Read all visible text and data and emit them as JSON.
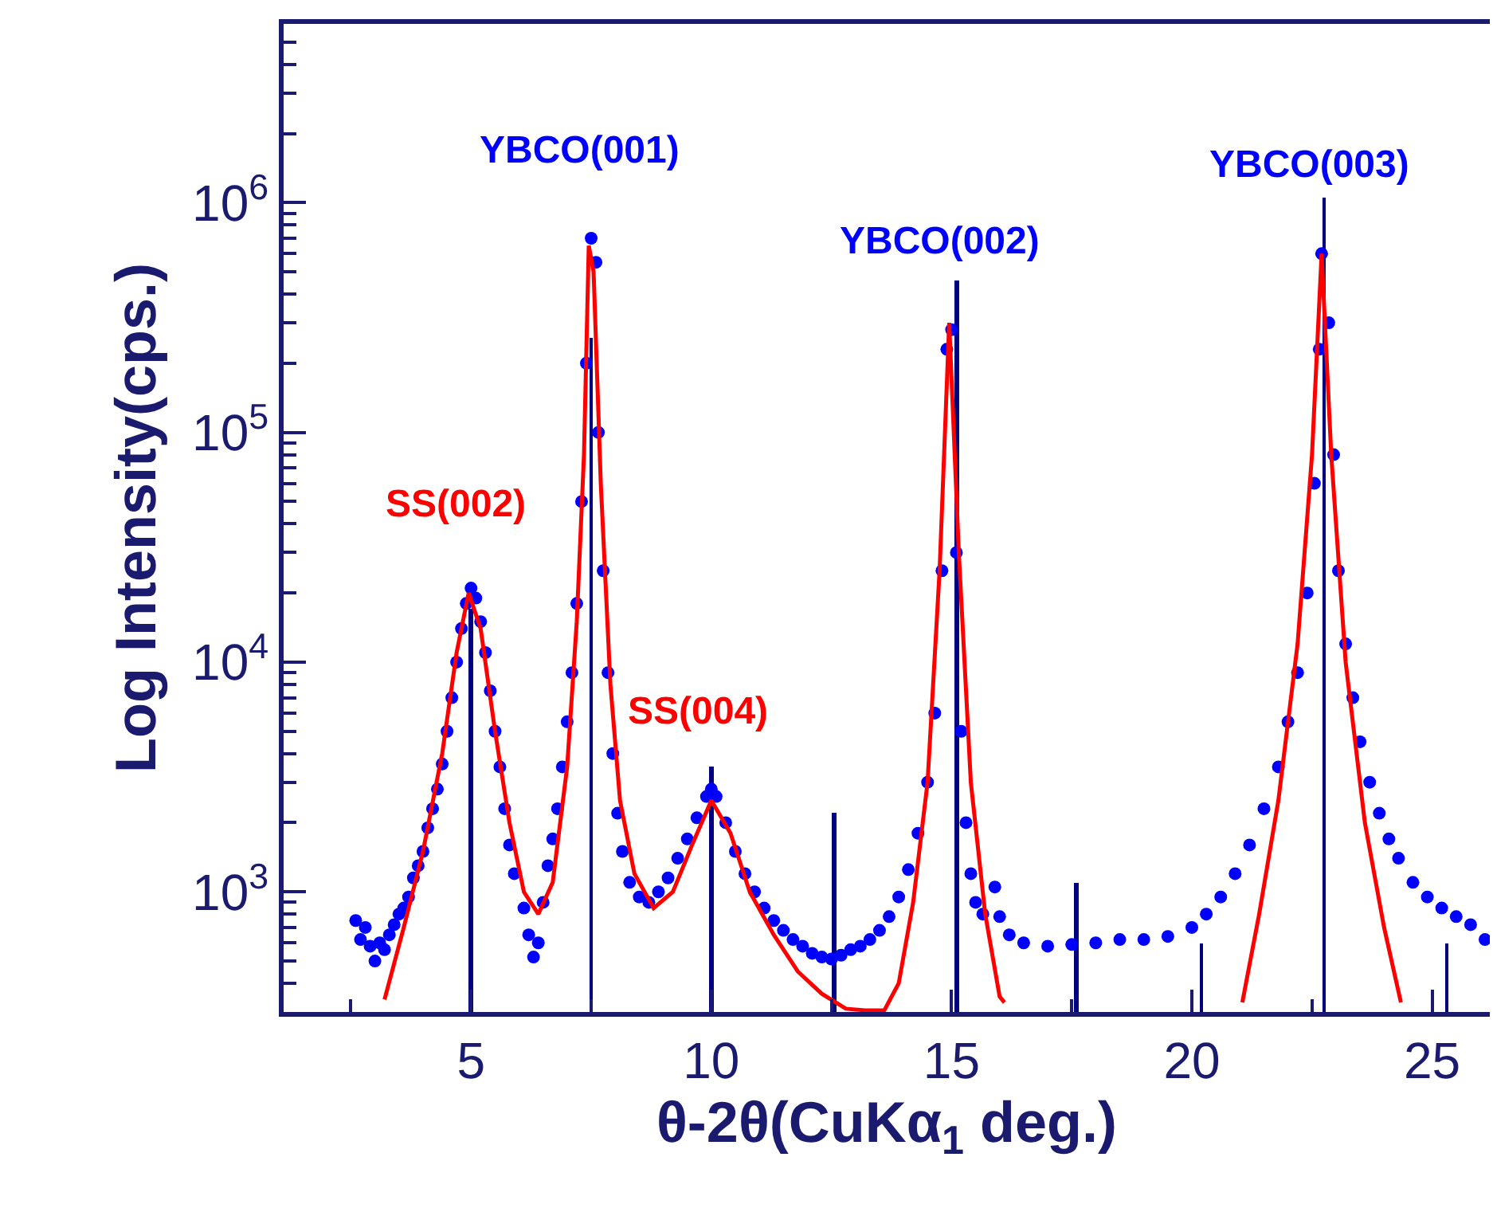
{
  "chart_data": {
    "type": "scatter",
    "xlabel": "θ-2θ(CuKα$_{1}$ deg.)",
    "ylabel": "Log Intensity(cps.)",
    "log": "y",
    "grid": false,
    "marker": "circle",
    "xlim": [
      1.1,
      26.2
    ],
    "ylim": [
      300,
      6000000
    ],
    "xticks": [
      {
        "value": 2.5,
        "label": null
      },
      5,
      {
        "value": 7.5,
        "label": null
      },
      10,
      {
        "value": 12.5,
        "label": null
      },
      15,
      {
        "value": 17.5,
        "label": null
      },
      20,
      {
        "value": 22.5,
        "label": null
      },
      25
    ],
    "yticks": [
      {
        "value": 400,
        "label": null
      },
      {
        "value": 500,
        "label": null
      },
      {
        "value": 600,
        "label": null
      },
      {
        "value": 700,
        "label": null
      },
      {
        "value": 800,
        "label": null
      },
      {
        "value": 900,
        "label": null
      },
      {
        "value": 1000,
        "label": "10$^{3}$"
      },
      {
        "value": 2000,
        "label": null
      },
      {
        "value": 3000,
        "label": null
      },
      {
        "value": 4000,
        "label": null
      },
      {
        "value": 5000,
        "label": null
      },
      {
        "value": 6000,
        "label": null
      },
      {
        "value": 7000,
        "label": null
      },
      {
        "value": 8000,
        "label": null
      },
      {
        "value": 9000,
        "label": null
      },
      {
        "value": 10000,
        "label": "10$^{4}$"
      },
      {
        "value": 20000,
        "label": null
      },
      {
        "value": 30000,
        "label": null
      },
      {
        "value": 40000,
        "label": null
      },
      {
        "value": 50000,
        "label": null
      },
      {
        "value": 60000,
        "label": null
      },
      {
        "value": 70000,
        "label": null
      },
      {
        "value": 80000,
        "label": null
      },
      {
        "value": 90000,
        "label": null
      },
      {
        "value": 100000,
        "label": "10$^{5}$"
      },
      {
        "value": 200000,
        "label": null
      },
      {
        "value": 300000,
        "label": null
      },
      {
        "value": 400000,
        "label": null
      },
      {
        "value": 500000,
        "label": null
      },
      {
        "value": 600000,
        "label": null
      },
      {
        "value": 700000,
        "label": null
      },
      {
        "value": 800000,
        "label": null
      },
      {
        "value": 900000,
        "label": null
      },
      {
        "value": 1000000,
        "label": "10$^{6}$"
      },
      {
        "value": 2000000,
        "label": null
      },
      {
        "value": 3000000,
        "label": null
      },
      {
        "value": 4000000,
        "label": null
      },
      {
        "value": 5000000,
        "label": null
      }
    ],
    "series": [
      {
        "type": "bar",
        "color": "#000080",
        "x": [
          5.0,
          7.5,
          10.0,
          12.55,
          15.1,
          17.6,
          20.2,
          22.75,
          25.3
        ],
        "values": [
          17000,
          260000,
          3500,
          2200,
          460000,
          1100,
          600,
          1050000,
          600
        ]
      },
      {
        "color": "#0000ff",
        "x": [
          2.6,
          2.7,
          2.8,
          2.9,
          3.0,
          3.1,
          3.2,
          3.3,
          3.4,
          3.5,
          3.6,
          3.7,
          3.8,
          3.9,
          4.0,
          4.1,
          4.2,
          4.3,
          4.4,
          4.5,
          4.6,
          4.7,
          4.8,
          4.9,
          5.0,
          5.1,
          5.2,
          5.3,
          5.4,
          5.5,
          5.6,
          5.7,
          5.8,
          5.9,
          6.1,
          6.2,
          6.3,
          6.4,
          6.5,
          6.6,
          6.7,
          6.8,
          6.9,
          7.0,
          7.1,
          7.2,
          7.3,
          7.4,
          7.5,
          7.6,
          7.65,
          7.75,
          7.85,
          7.95,
          8.05,
          8.15,
          8.3,
          8.5,
          8.7,
          8.9,
          9.1,
          9.3,
          9.5,
          9.7,
          9.9,
          10.0,
          10.1,
          10.3,
          10.5,
          10.7,
          10.9,
          11.1,
          11.3,
          11.5,
          11.7,
          11.9,
          12.1,
          12.3,
          12.5,
          12.7,
          12.9,
          13.1,
          13.3,
          13.5,
          13.7,
          13.9,
          14.1,
          14.3,
          14.5,
          14.65,
          14.8,
          14.9,
          15.0,
          15.1,
          15.2,
          15.3,
          15.4,
          15.5,
          15.65,
          15.9,
          16.0,
          16.2,
          16.5,
          17.0,
          17.5,
          18.0,
          18.5,
          19.0,
          19.5,
          20.0,
          20.3,
          20.6,
          20.9,
          21.2,
          21.5,
          21.8,
          22.0,
          22.2,
          22.4,
          22.55,
          22.65,
          22.7,
          22.85,
          22.95,
          23.05,
          23.2,
          23.35,
          23.5,
          23.7,
          23.9,
          24.1,
          24.3,
          24.6,
          24.9,
          25.2,
          25.5,
          25.8,
          26.1
        ],
        "values": [
          750,
          620,
          700,
          580,
          500,
          600,
          560,
          650,
          720,
          800,
          850,
          950,
          1150,
          1300,
          1500,
          1900,
          2300,
          2800,
          3600,
          5000,
          7000,
          10000,
          14000,
          18000,
          21000,
          19000,
          15000,
          11000,
          7500,
          5000,
          3500,
          2300,
          1600,
          1200,
          850,
          650,
          520,
          600,
          900,
          1300,
          1700,
          2300,
          3500,
          5500,
          9000,
          18000,
          50000,
          200000,
          700000,
          550000,
          100000,
          25000,
          9000,
          4000,
          2200,
          1500,
          1100,
          950,
          900,
          1000,
          1150,
          1400,
          1700,
          2100,
          2600,
          2800,
          2600,
          2000,
          1500,
          1200,
          1000,
          850,
          750,
          680,
          620,
          580,
          540,
          520,
          510,
          530,
          560,
          580,
          620,
          680,
          780,
          950,
          1250,
          1800,
          3000,
          6000,
          25000,
          230000,
          280000,
          30000,
          5000,
          2000,
          1200,
          900,
          800,
          1050,
          780,
          650,
          600,
          580,
          590,
          600,
          620,
          620,
          640,
          700,
          800,
          950,
          1200,
          1600,
          2300,
          3500,
          5500,
          9000,
          20000,
          60000,
          230000,
          600000,
          300000,
          80000,
          25000,
          12000,
          7000,
          4500,
          3000,
          2200,
          1700,
          1400,
          1100,
          950,
          850,
          780,
          720,
          620
        ]
      },
      {
        "type": "line",
        "color": "#ff0000",
        "marker": "none",
        "line_style": "solid",
        "x": [
          3.2,
          3.6,
          4.0,
          4.4,
          4.7,
          4.95,
          5.2,
          5.5,
          5.8,
          6.1,
          6.4,
          6.7,
          7.0,
          7.2,
          7.35,
          7.45,
          7.55,
          7.7,
          7.9,
          8.1,
          8.4,
          8.8,
          9.2,
          9.6,
          10.0,
          10.4,
          10.8,
          11.3,
          11.8,
          12.3,
          12.8,
          13.2,
          13.6,
          13.9,
          14.2,
          14.5,
          14.75,
          14.95,
          15.15,
          15.4,
          15.7,
          16.0,
          16.1,
          18.5,
          21.05,
          21.4,
          21.8,
          22.2,
          22.5,
          22.7,
          22.9,
          23.2,
          23.6,
          24.0,
          24.35
        ],
        "values": [
          340,
          700,
          1500,
          4000,
          11000,
          20000,
          14000,
          5000,
          2000,
          1000,
          800,
          1100,
          3500,
          15000,
          80000,
          650000,
          500000,
          60000,
          8000,
          2500,
          1200,
          850,
          1000,
          1600,
          2500,
          1800,
          1000,
          650,
          450,
          360,
          310,
          305,
          305,
          400,
          900,
          3000,
          25000,
          300000,
          30000,
          3000,
          800,
          350,
          330,
          null,
          330,
          800,
          2500,
          12000,
          80000,
          600000,
          80000,
          10000,
          2000,
          700,
          330
        ]
      }
    ],
    "annotations": [
      {
        "text": "SS(002)",
        "x": 4.95,
        "y": 20000
      },
      {
        "text": "YBCO(001)",
        "x": 7.5,
        "y": 700000
      },
      {
        "text": "SS(004)",
        "x": 10.0,
        "y": 2500
      },
      {
        "text": "YBCO(002)",
        "x": 15.0,
        "y": 280000
      },
      {
        "text": "YBCO(003)",
        "x": 22.7,
        "y": 600000
      }
    ]
  }
}
